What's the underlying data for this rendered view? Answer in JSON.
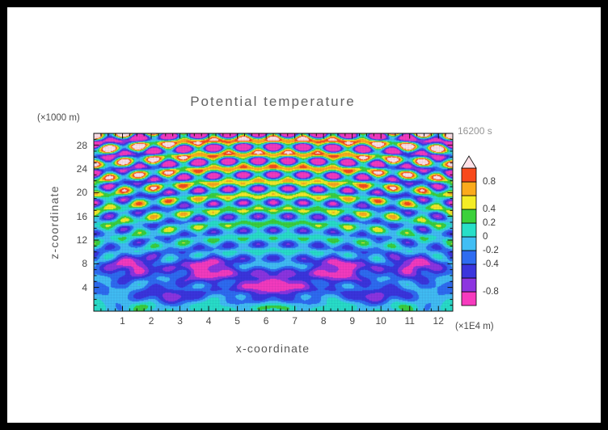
{
  "title": "Potential temperature",
  "timestamp": "16200 s",
  "axes": {
    "x": {
      "label": "x-coordinate",
      "unit": "(×1E4 m)"
    },
    "z": {
      "label": "z-coordinate",
      "unit": "(×1000 m)"
    }
  },
  "chart_data": {
    "type": "heatmap",
    "title": "Potential temperature",
    "time_label": "16200 s",
    "xlabel": "x-coordinate",
    "x_unit": "×1E4 m",
    "xlim": [
      0,
      12.5
    ],
    "x_ticks": [
      1,
      2,
      3,
      4,
      5,
      6,
      7,
      8,
      9,
      10,
      11,
      12
    ],
    "x_minor_step": 0.25,
    "ylabel": "z-coordinate",
    "y_unit": "×1000 m",
    "ylim": [
      0,
      30
    ],
    "y_ticks": [
      4,
      8,
      12,
      16,
      20,
      24,
      28
    ],
    "y_minor_step": 1,
    "colorbar": {
      "levels": [
        -0.8,
        -0.6,
        -0.4,
        -0.2,
        0,
        0.2,
        0.4,
        0.6,
        0.8
      ],
      "band_colors": [
        "#f63bbe",
        "#8d35e0",
        "#3b35dd",
        "#2e6cf1",
        "#41bef4",
        "#28dfc8",
        "#3bd13b",
        "#f4ec25",
        "#fbaa1b",
        "#f8491b"
      ],
      "over_color": "#ffe2e8",
      "outline_color": "#000000",
      "tick_labels": [
        {
          "value": 0.8,
          "text": "0.8"
        },
        {
          "value": 0.4,
          "text": "0.4"
        },
        {
          "value": 0.2,
          "text": "0.2"
        },
        {
          "value": 0,
          "text": "0"
        },
        {
          "value": -0.2,
          "text": "-0.2"
        },
        {
          "value": -0.4,
          "text": "-0.4"
        },
        {
          "value": -0.8,
          "text": "-0.8"
        }
      ]
    },
    "pattern_description": "Symmetric internal gravity-wave interference pattern radiating upward from the lower center of the domain; weak negative (blue) background below z≈12 with isolated strong minima (magenta/purple blobs) and thin green/cyan bands near the surface; strong alternating cellular field (values beyond ±0.8, white/red vs navy) above z≈14.",
    "field_model": {
      "x_center": 6.25,
      "env_base": 0.16,
      "env_gain": 1.5,
      "env_power": 1.9,
      "cell_wx": 1.04,
      "cell_wz": 4.6,
      "cell_z0": 16.0,
      "w_cell": 0.72,
      "arc_sx": 1.35,
      "arc_sz": 2.35,
      "arc_depth": 4.0,
      "arc_wl": 1.0,
      "w_arc": 0.58,
      "background": {
        "amp": -0.22,
        "z0": 6.0,
        "zw": 6.5
      },
      "bottom_band": {
        "amp": 0.34,
        "z0": 0.7,
        "zw": 1.1,
        "wx": 2.2
      },
      "low_blobs": [
        {
          "amp": -0.9,
          "z": 4.3,
          "zw": 2.0,
          "dx": 0,
          "xw": 1.15
        },
        {
          "amp": -0.8,
          "z": 7.0,
          "zw": 1.9,
          "dx": 2.3,
          "xw": 0.95
        },
        {
          "amp": -0.7,
          "z": 7.6,
          "zw": 1.7,
          "dx": 4.9,
          "xw": 0.85
        },
        {
          "amp": -0.55,
          "z": 2.6,
          "zw": 1.3,
          "dx": 3.6,
          "xw": 1.0
        }
      ],
      "grid_mesh": {
        "spacing_px": 3.5,
        "color": "rgba(20,20,110,0.08)"
      }
    }
  }
}
